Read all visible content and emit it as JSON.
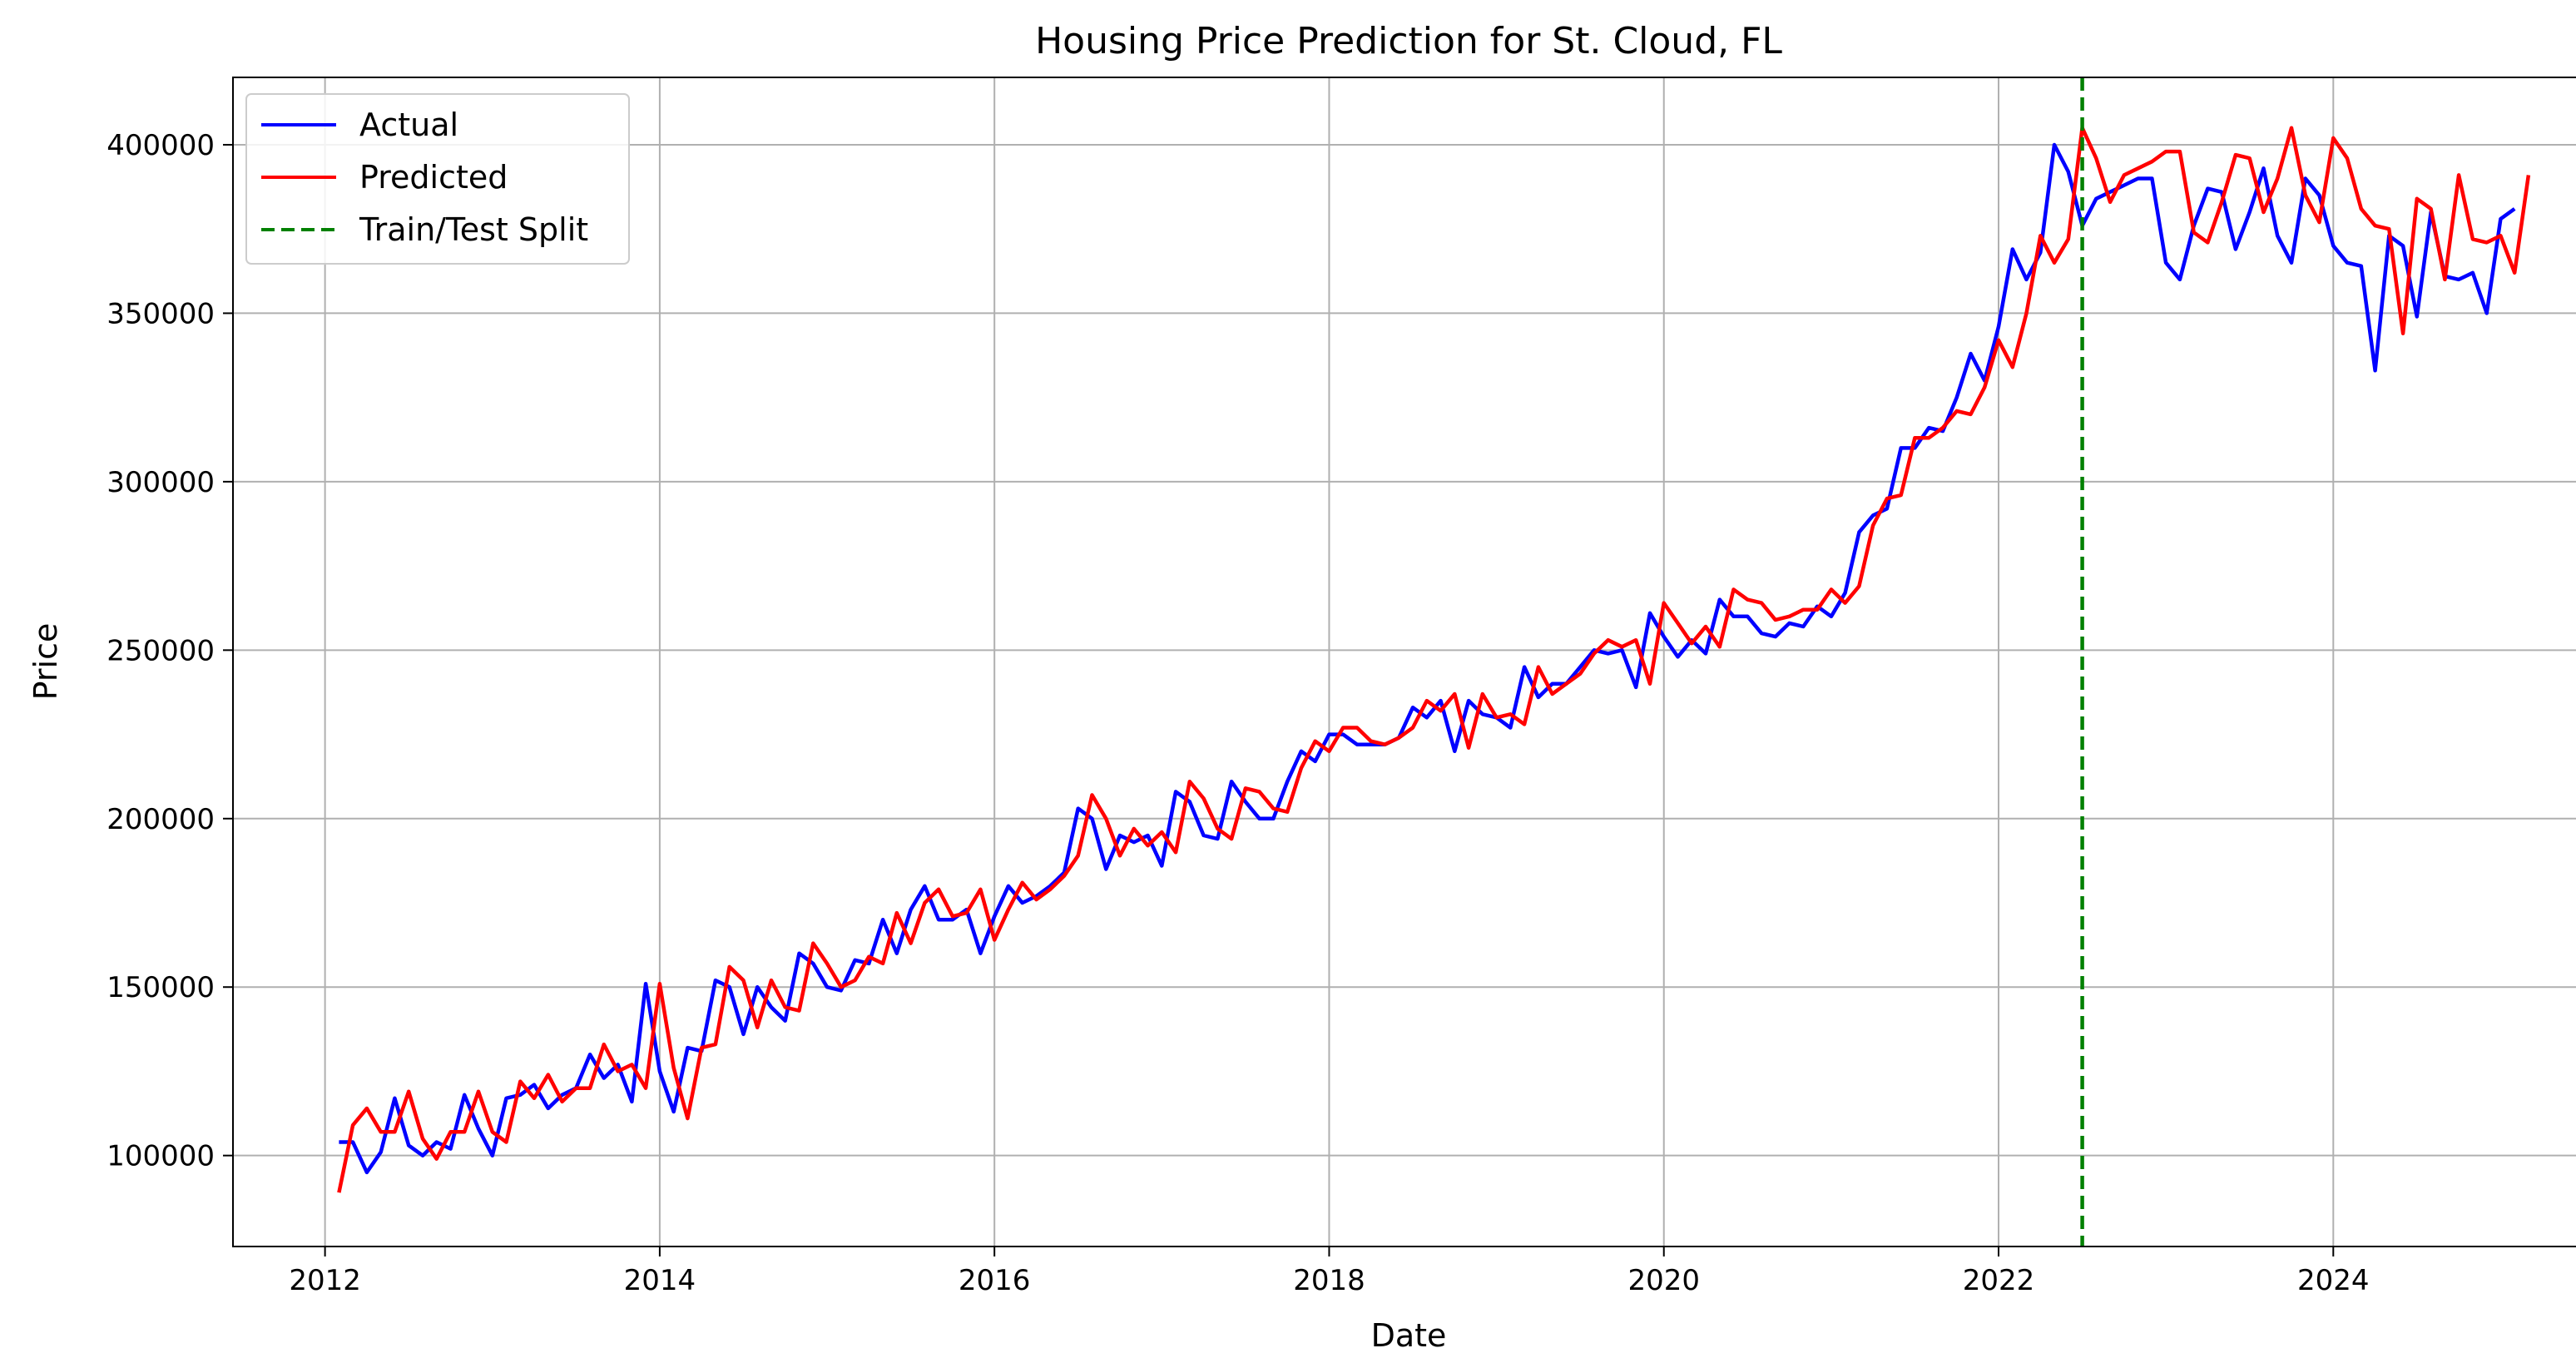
{
  "chart_data": {
    "type": "line",
    "title": "Housing Price Prediction for St. Cloud, FL",
    "xlabel": "Date",
    "ylabel": "Price",
    "xlim": [
      2011.45,
      2025.5
    ],
    "ylim": [
      73000,
      420000
    ],
    "x_ticks": [
      2012,
      2014,
      2016,
      2018,
      2020,
      2022,
      2024
    ],
    "y_ticks": [
      100000,
      150000,
      200000,
      250000,
      300000,
      350000,
      400000
    ],
    "grid": true,
    "legend_position": "upper-left",
    "split": {
      "name": "Train/Test Split",
      "x": 2022.5,
      "color": "#008000",
      "style": "dashed"
    },
    "x_start": 2012.0833,
    "x_step": 0.083333,
    "series": [
      {
        "name": "Actual",
        "color": "#0000ff",
        "values": [
          104000,
          104000,
          95000,
          101000,
          117000,
          103000,
          100000,
          104000,
          102000,
          118000,
          108000,
          100000,
          117000,
          118000,
          121000,
          114000,
          118000,
          120000,
          130000,
          123000,
          127000,
          116000,
          151000,
          125000,
          113000,
          132000,
          131000,
          152000,
          150000,
          136000,
          150000,
          144000,
          140000,
          160000,
          157000,
          150000,
          149000,
          158000,
          157000,
          170000,
          160000,
          173000,
          180000,
          170000,
          170000,
          173000,
          160000,
          171000,
          180000,
          175000,
          177000,
          180000,
          184000,
          203000,
          200000,
          185000,
          195000,
          193000,
          195000,
          186000,
          208000,
          205000,
          195000,
          194000,
          211000,
          205000,
          200000,
          200000,
          211000,
          220000,
          217000,
          225000,
          225000,
          222000,
          222000,
          222000,
          224000,
          233000,
          230000,
          235000,
          220000,
          235000,
          231000,
          230000,
          227000,
          245000,
          236000,
          240000,
          240000,
          245000,
          250000,
          249000,
          250000,
          239000,
          261000,
          254000,
          248000,
          253000,
          249000,
          265000,
          260000,
          260000,
          255000,
          254000,
          258000,
          257000,
          263000,
          260000,
          267000,
          285000,
          290000,
          292000,
          310000,
          310000,
          316000,
          315000,
          325000,
          338000,
          330000,
          346000,
          369000,
          360000,
          368000,
          400000,
          392000,
          376000,
          384000,
          386000,
          388000,
          390000,
          390000,
          365000,
          360000,
          376000,
          387000,
          386000,
          369000,
          380000,
          393000,
          373000,
          365000,
          390000,
          385000,
          370000,
          365000,
          364000,
          333000,
          373000,
          370000,
          349000,
          380000,
          361000,
          360000,
          362000,
          350000,
          378000,
          381000
        ]
      },
      {
        "name": "Predicted",
        "color": "#ff0000",
        "values": [
          89000,
          109000,
          114000,
          107000,
          107000,
          119000,
          105000,
          99000,
          107000,
          107000,
          119000,
          107000,
          104000,
          122000,
          117000,
          124000,
          116000,
          120000,
          120000,
          133000,
          125000,
          127000,
          120000,
          151000,
          126000,
          111000,
          132000,
          133000,
          156000,
          152000,
          138000,
          152000,
          144000,
          143000,
          163000,
          157000,
          150000,
          152000,
          159000,
          157000,
          172000,
          163000,
          175000,
          179000,
          171000,
          172000,
          179000,
          164000,
          173000,
          181000,
          176000,
          179000,
          183000,
          189000,
          207000,
          200000,
          189000,
          197000,
          192000,
          196000,
          190000,
          211000,
          206000,
          197000,
          194000,
          209000,
          208000,
          203000,
          202000,
          215000,
          223000,
          220000,
          227000,
          227000,
          223000,
          222000,
          224000,
          227000,
          235000,
          232000,
          237000,
          221000,
          237000,
          230000,
          231000,
          228000,
          245000,
          237000,
          240000,
          243000,
          249000,
          253000,
          251000,
          253000,
          240000,
          264000,
          258000,
          252000,
          257000,
          251000,
          268000,
          265000,
          264000,
          259000,
          260000,
          262000,
          262000,
          268000,
          264000,
          269000,
          287000,
          295000,
          296000,
          313000,
          313000,
          316000,
          321000,
          320000,
          328000,
          342000,
          334000,
          350000,
          373000,
          365000,
          372000,
          405000,
          396000,
          383000,
          391000,
          393000,
          395000,
          398000,
          398000,
          374000,
          371000,
          383000,
          397000,
          396000,
          380000,
          390000,
          405000,
          385000,
          377000,
          402000,
          396000,
          381000,
          376000,
          375000,
          344000,
          384000,
          381000,
          360000,
          391000,
          372000,
          371000,
          373000,
          362000,
          391000
        ]
      }
    ]
  }
}
